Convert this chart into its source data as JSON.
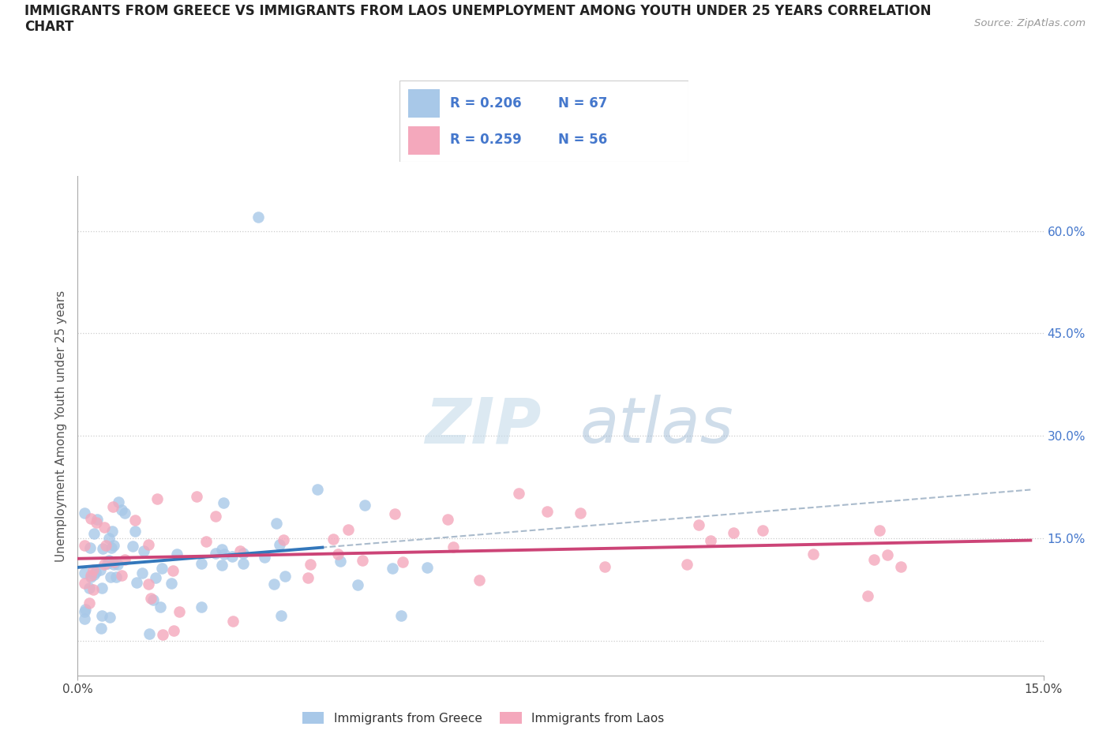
{
  "title": "IMMIGRANTS FROM GREECE VS IMMIGRANTS FROM LAOS UNEMPLOYMENT AMONG YOUTH UNDER 25 YEARS CORRELATION\nCHART",
  "source": "Source: ZipAtlas.com",
  "ylabel": "Unemployment Among Youth under 25 years",
  "xlim": [
    0.0,
    0.15
  ],
  "ylim": [
    -0.05,
    0.68
  ],
  "right_yticks": [
    0.15,
    0.3,
    0.45,
    0.6
  ],
  "right_ytick_labels": [
    "15.0%",
    "30.0%",
    "45.0%",
    "60.0%"
  ],
  "legend_label1": "Immigrants from Greece",
  "legend_label2": "Immigrants from Laos",
  "R1": 0.206,
  "N1": 67,
  "R2": 0.259,
  "N2": 56,
  "color_greece": "#a8c8e8",
  "color_laos": "#f4a8bc",
  "color_greece_solid": "#3377bb",
  "color_laos_solid": "#cc4477",
  "color_dashed": "#aabbcc",
  "legend_text_color": "#4477cc",
  "watermark_zip_color": "#c0d8e8",
  "watermark_atlas_color": "#88aacc"
}
